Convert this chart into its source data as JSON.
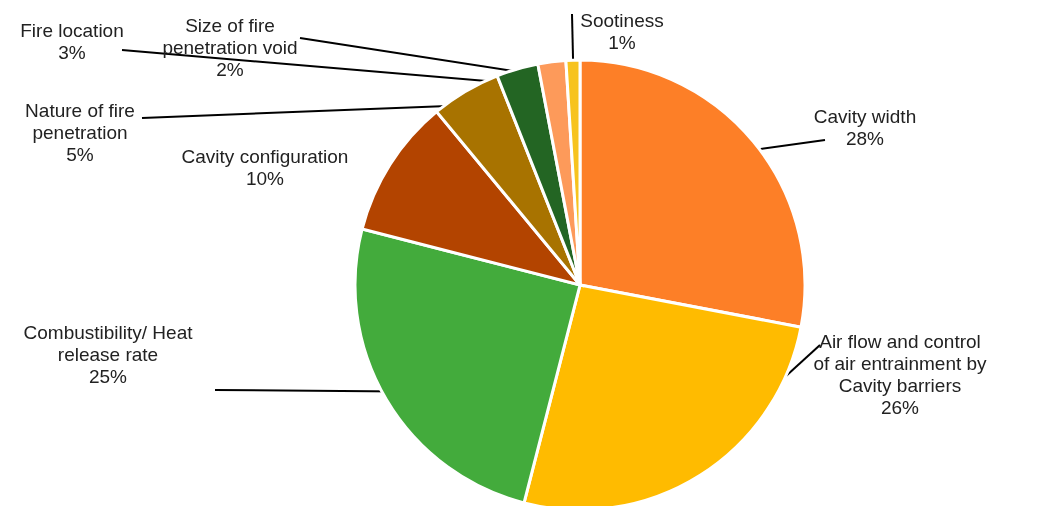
{
  "chart_data": {
    "type": "pie",
    "categories": [
      "Cavity width",
      "Air flow and control of air entrainment by Cavity barriers",
      "Combustibility/ Heat release rate",
      "Cavity configuration",
      "Nature of fire penetration",
      "Fire location",
      "Size of fire penetration void",
      "Sootiness"
    ],
    "values": [
      28,
      26,
      25,
      10,
      5,
      3,
      2,
      1
    ],
    "value_labels": [
      "28%",
      "26%",
      "25%",
      "10%",
      "5%",
      "3%",
      "2%",
      "1%"
    ],
    "colors": [
      "#fd7f27",
      "#ffbb00",
      "#43ab3c",
      "#b34400",
      "#a87300",
      "#236523",
      "#fd9a5a",
      "#f7c31e"
    ]
  }
}
